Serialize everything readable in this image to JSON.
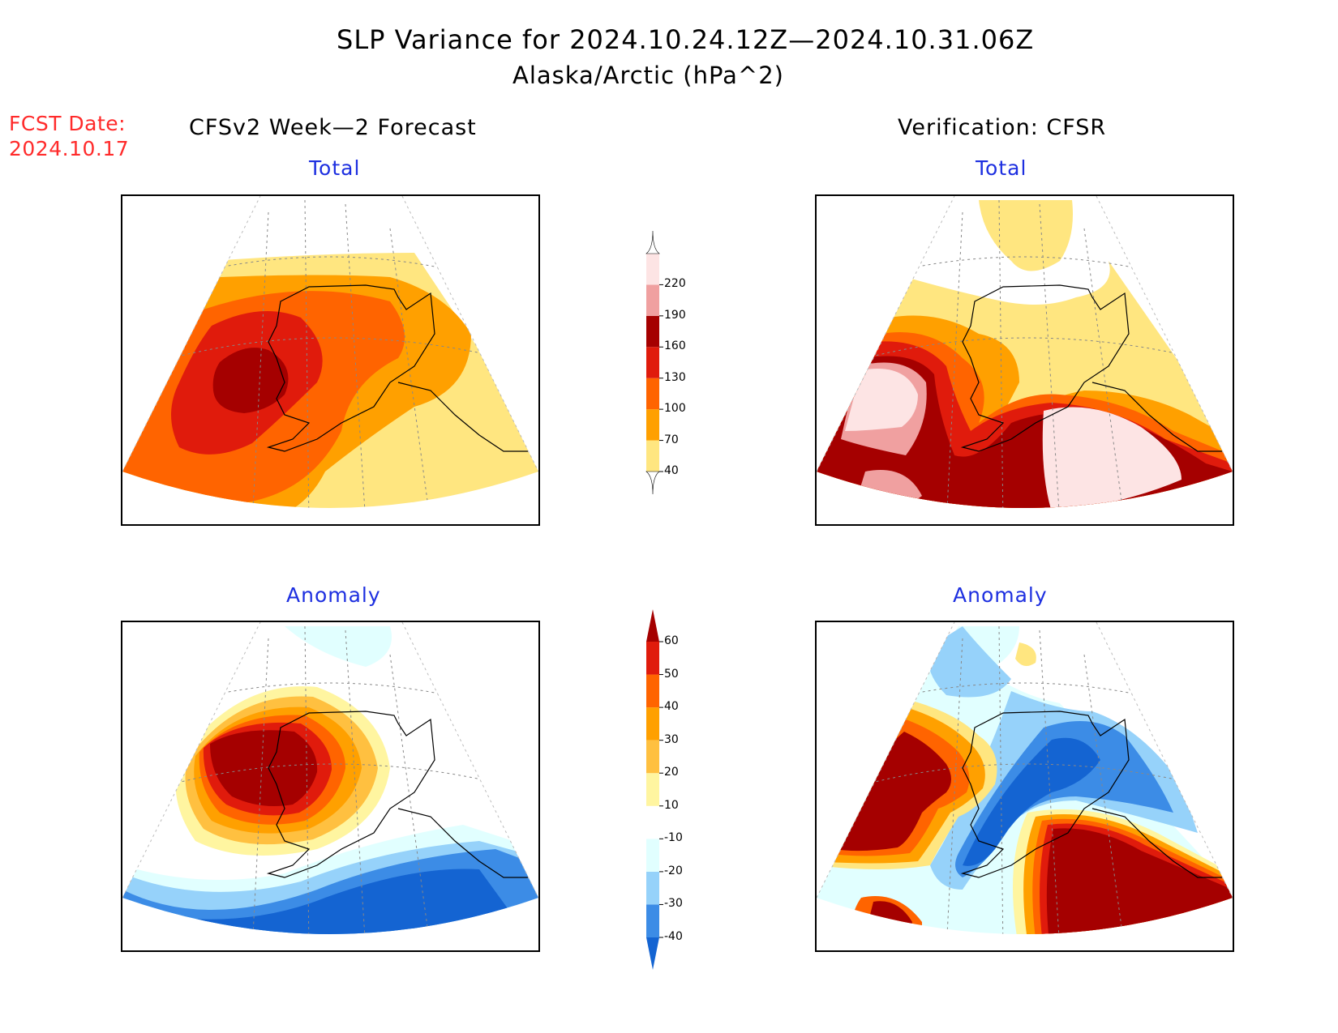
{
  "title": "SLP Variance for 2024.10.24.12Z—2024.10.31.06Z",
  "subtitle": "Alaska/Arctic (hPa^2)",
  "fcst_date": {
    "line1": "FCST Date:",
    "line2": "2024.10.17"
  },
  "columns": {
    "left": "CFSv2 Week—2 Forecast",
    "right": "Verification: CFSR"
  },
  "panels": {
    "forecast_total": {
      "title": "Total"
    },
    "verification_total": {
      "title": "Total"
    },
    "forecast_anomaly": {
      "title": "Anomaly"
    },
    "verification_anomaly": {
      "title": "Anomaly"
    }
  },
  "colorbars": {
    "total": {
      "labels": [
        "40",
        "70",
        "100",
        "130",
        "160",
        "190",
        "220"
      ],
      "colors": [
        "#ffe680",
        "#ffa000",
        "#ff6400",
        "#e01b0c",
        "#a50000",
        "#f0a0a0",
        "#fde4e4"
      ]
    },
    "anomaly": {
      "labels": [
        "-40",
        "-30",
        "-20",
        "-10",
        "10",
        "20",
        "30",
        "40",
        "50",
        "60"
      ],
      "colors": [
        "#1464d2",
        "#3c8ce6",
        "#96d2fa",
        "#e1ffff",
        "#ffffff",
        "#fff5a0",
        "#ffc040",
        "#ffa000",
        "#ff6400",
        "#e01b0c",
        "#a50000"
      ]
    }
  }
}
